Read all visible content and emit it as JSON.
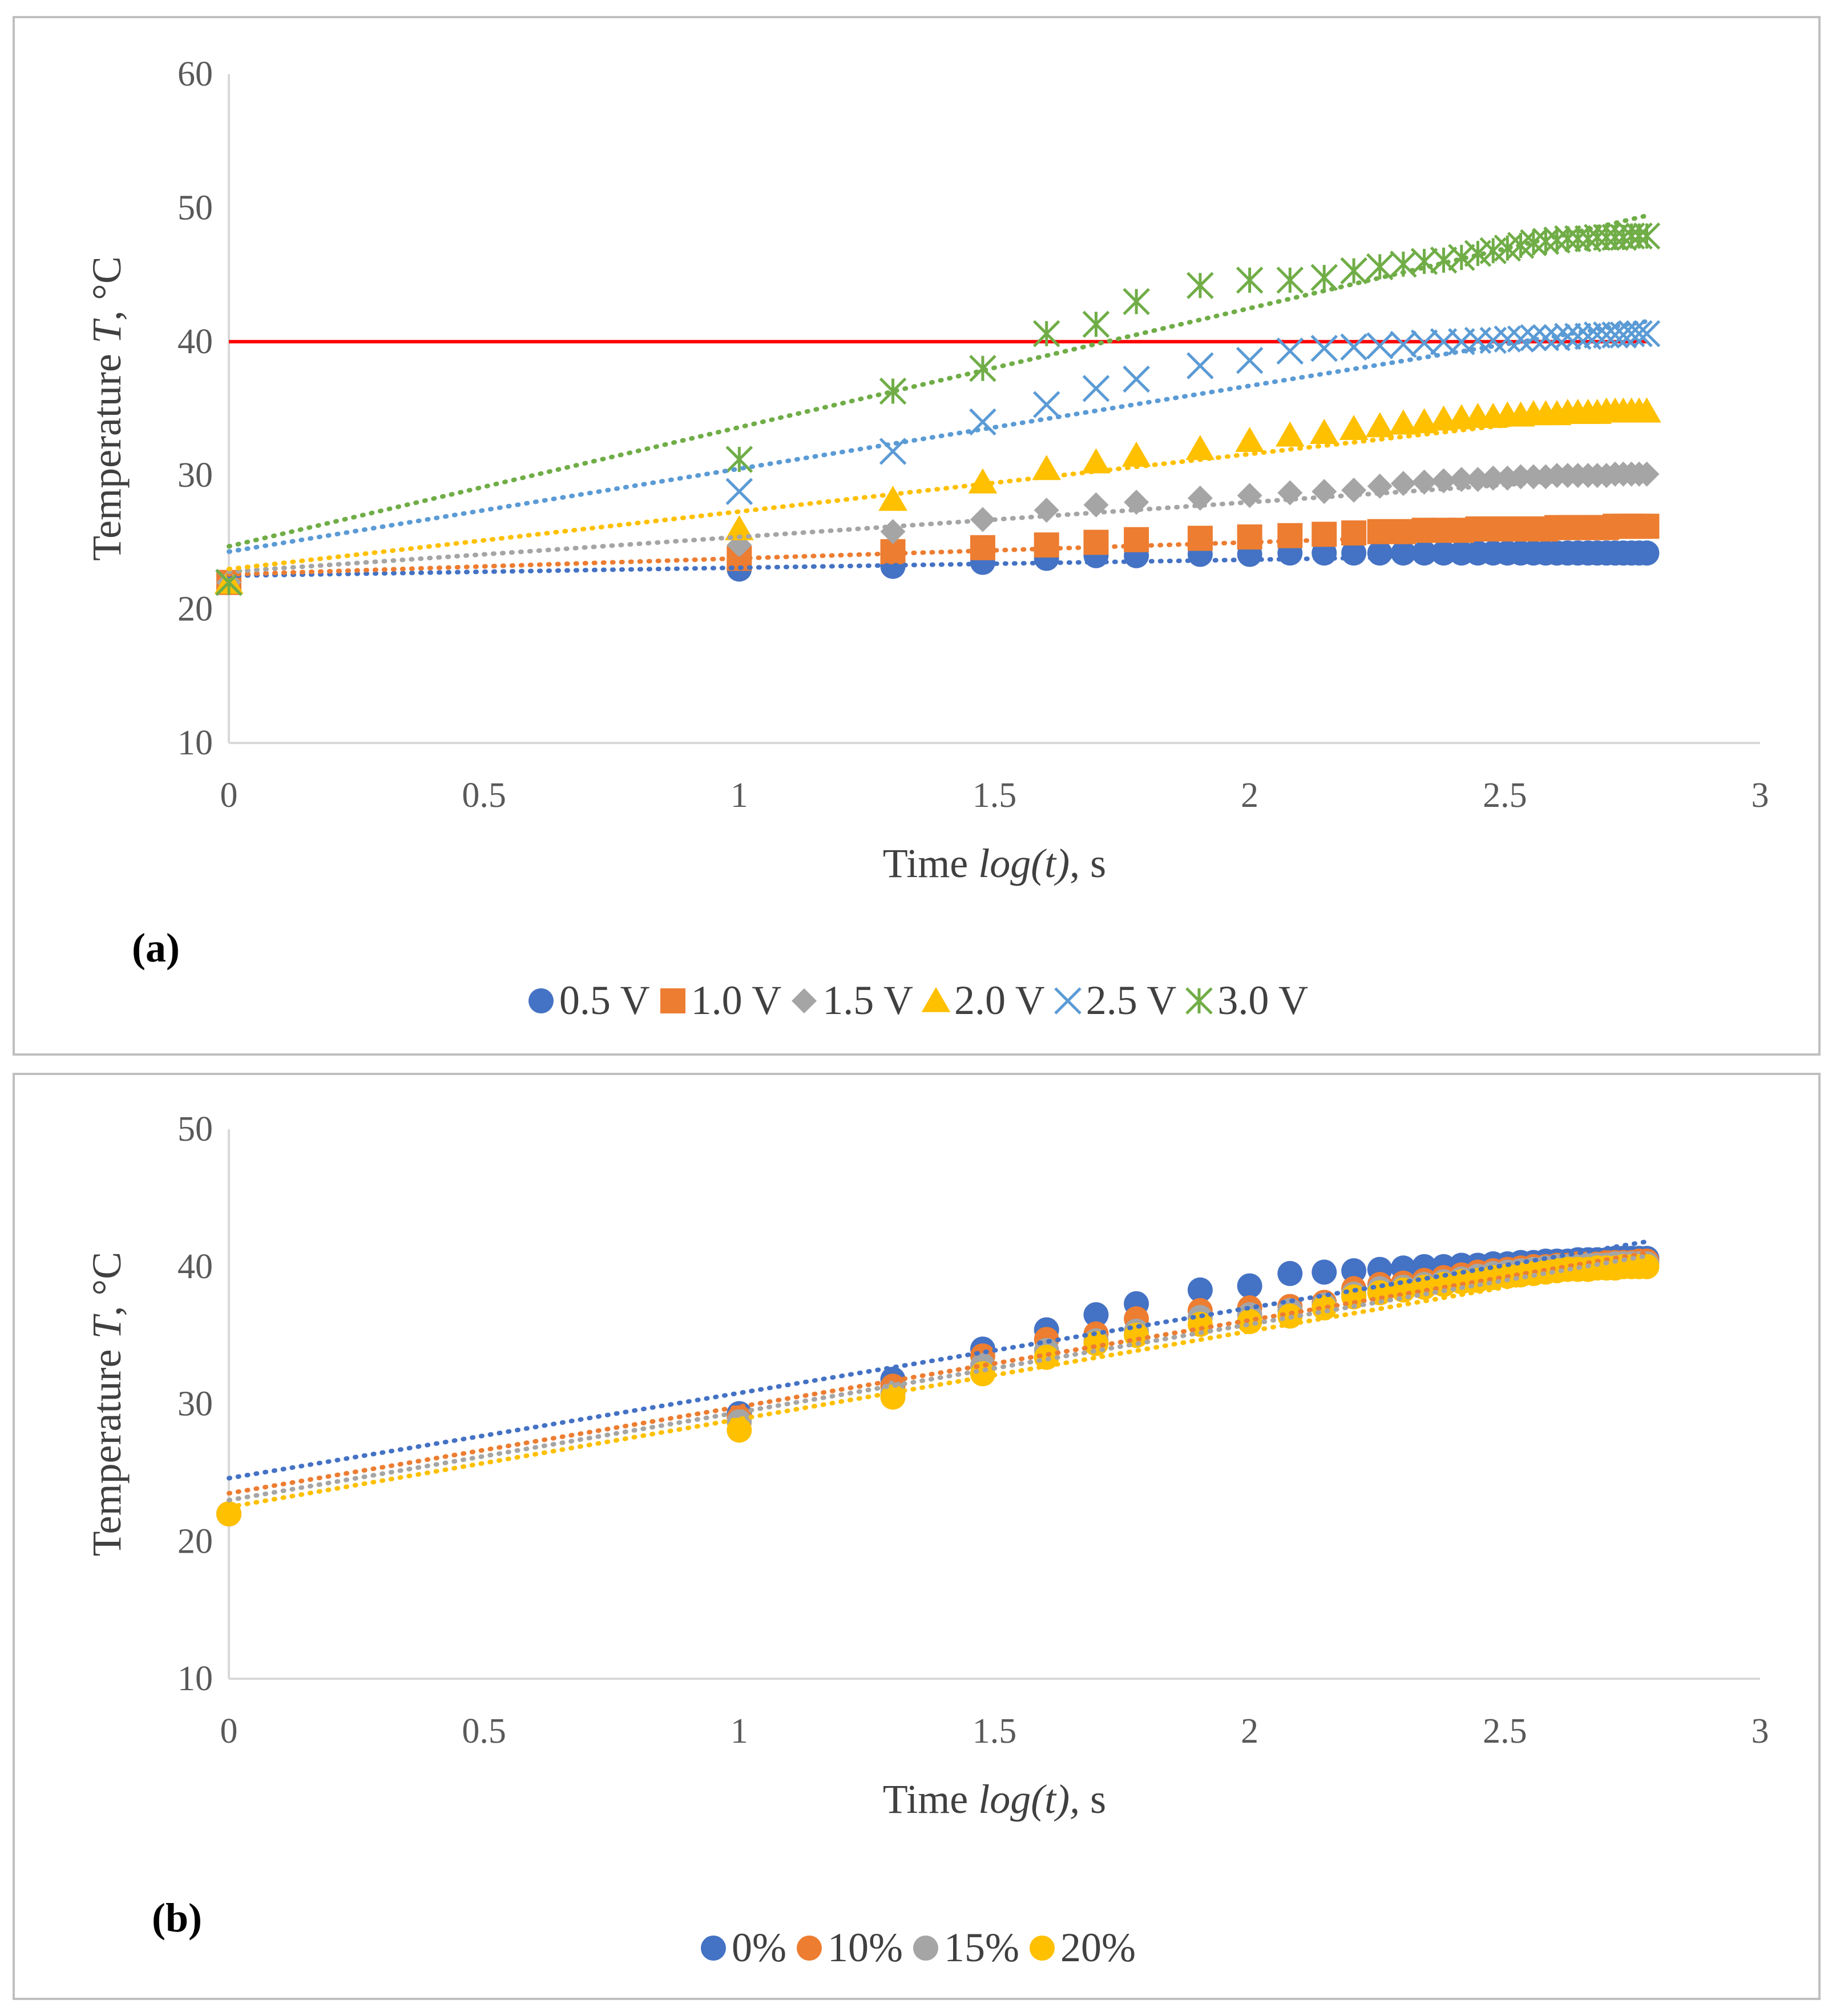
{
  "chart_data": [
    {
      "type": "scatter",
      "panel_label": "(a)",
      "xlabel": "Time log(t), s",
      "xlabel_parts": {
        "prefix": "Time ",
        "italic": "log(t)",
        "suffix": ", s"
      },
      "ylabel": "Temperature T, °C",
      "ylabel_parts": {
        "prefix": "Temperature ",
        "italic": "T",
        "suffix": ", °C"
      },
      "xlim": [
        0,
        3
      ],
      "ylim": [
        10,
        60
      ],
      "x_ticks": [
        "0",
        "0.5",
        "1",
        "1.5",
        "2",
        "2.5",
        "3"
      ],
      "y_ticks": [
        "10",
        "20",
        "30",
        "40",
        "50",
        "60"
      ],
      "grid": false,
      "legend_position": "bottom",
      "threshold_line": {
        "y": 40,
        "color": "#ff0000"
      },
      "x": [
        0,
        1,
        1.301,
        1.477,
        1.602,
        1.699,
        1.778,
        1.903,
        2,
        2.079,
        2.146,
        2.204,
        2.255,
        2.301,
        2.342,
        2.38,
        2.415,
        2.447,
        2.477,
        2.505,
        2.531,
        2.556,
        2.58,
        2.602,
        2.623,
        2.643,
        2.663,
        2.681,
        2.699,
        2.716,
        2.732,
        2.748,
        2.763,
        2.778
      ],
      "series": [
        {
          "name": "0.5 V",
          "marker": "circle",
          "color": "#4472c4",
          "trend": {
            "intercept": 22.5,
            "slope": 0.6
          },
          "values": [
            22,
            23,
            23.2,
            23.5,
            23.8,
            24,
            24,
            24.1,
            24.1,
            24.2,
            24.2,
            24.2,
            24.2,
            24.2,
            24.2,
            24.2,
            24.2,
            24.2,
            24.2,
            24.2,
            24.2,
            24.2,
            24.2,
            24.2,
            24.2,
            24.2,
            24.2,
            24.2,
            24.2,
            24.2,
            24.2,
            24.2,
            24.2,
            24.2
          ]
        },
        {
          "name": "1.0 V",
          "marker": "square",
          "color": "#ed7d31",
          "trend": {
            "intercept": 22.6,
            "slope": 1.2
          },
          "values": [
            22,
            23.8,
            24.3,
            24.6,
            24.8,
            25,
            25.2,
            25.3,
            25.4,
            25.5,
            25.6,
            25.7,
            25.8,
            25.8,
            25.9,
            25.9,
            25.9,
            26,
            26,
            26,
            26,
            26,
            26,
            26.1,
            26.1,
            26.1,
            26.1,
            26.1,
            26.1,
            26.2,
            26.2,
            26.2,
            26.2,
            26.2
          ]
        },
        {
          "name": "1.5 V",
          "marker": "diamond",
          "color": "#a5a5a5",
          "trend": {
            "intercept": 22.8,
            "slope": 2.6
          },
          "values": [
            22,
            24.8,
            25.8,
            26.7,
            27.4,
            27.8,
            28,
            28.3,
            28.5,
            28.7,
            28.8,
            28.9,
            29.2,
            29.4,
            29.5,
            29.6,
            29.7,
            29.7,
            29.8,
            29.8,
            29.9,
            29.9,
            29.9,
            30,
            30,
            30,
            30,
            30,
            30,
            30.1,
            30.1,
            30.1,
            30.1,
            30.1
          ]
        },
        {
          "name": "2.0 V",
          "marker": "triangle",
          "color": "#ffc000",
          "trend": {
            "intercept": 23,
            "slope": 4.3
          },
          "values": [
            22,
            26,
            28.2,
            29.5,
            30.5,
            31,
            31.5,
            32,
            32.6,
            33,
            33.2,
            33.5,
            33.7,
            33.9,
            34,
            34.2,
            34.3,
            34.4,
            34.4,
            34.5,
            34.5,
            34.6,
            34.6,
            34.6,
            34.7,
            34.7,
            34.7,
            34.7,
            34.8,
            34.8,
            34.8,
            34.8,
            34.8,
            34.8
          ]
        },
        {
          "name": "2.5 V",
          "marker": "x",
          "color": "#5b9bd5",
          "trend": {
            "intercept": 24.3,
            "slope": 6.2
          },
          "values": [
            22,
            28.8,
            31.8,
            34,
            35.3,
            36.5,
            37.2,
            38.2,
            38.6,
            39.3,
            39.5,
            39.6,
            39.7,
            39.8,
            39.9,
            40,
            40,
            40.1,
            40.1,
            40.2,
            40.2,
            40.3,
            40.3,
            40.3,
            40.4,
            40.4,
            40.4,
            40.5,
            40.5,
            40.5,
            40.5,
            40.6,
            40.6,
            40.6
          ]
        },
        {
          "name": "3.0 V",
          "marker": "star",
          "color": "#70ad47",
          "trend": {
            "intercept": 24.7,
            "slope": 8.9
          },
          "values": [
            22,
            31.2,
            36.3,
            38,
            40.6,
            41.3,
            43,
            44.2,
            44.6,
            44.6,
            44.8,
            45.3,
            45.6,
            45.8,
            46,
            46.1,
            46.3,
            46.6,
            46.8,
            47,
            47.2,
            47.4,
            47.5,
            47.6,
            47.7,
            47.7,
            47.7,
            47.8,
            47.8,
            47.8,
            47.8,
            47.9,
            47.9,
            47.9
          ]
        }
      ]
    },
    {
      "type": "scatter",
      "panel_label": "(b)",
      "xlabel": "Time log(t), s",
      "xlabel_parts": {
        "prefix": "Time ",
        "italic": "log(t),",
        "suffix": " s"
      },
      "ylabel": "Temperature T, °C",
      "ylabel_parts": {
        "prefix": "Temperature ",
        "italic": "T",
        "suffix": ", °C"
      },
      "xlim": [
        0,
        3
      ],
      "ylim": [
        10,
        50
      ],
      "x_ticks": [
        "0",
        "0.5",
        "1",
        "1.5",
        "2",
        "2.5",
        "3"
      ],
      "y_ticks": [
        "10",
        "20",
        "30",
        "40",
        "50"
      ],
      "grid": false,
      "legend_position": "bottom",
      "x": [
        0,
        1,
        1.301,
        1.477,
        1.602,
        1.699,
        1.778,
        1.903,
        2,
        2.079,
        2.146,
        2.204,
        2.255,
        2.301,
        2.342,
        2.38,
        2.415,
        2.447,
        2.477,
        2.505,
        2.531,
        2.556,
        2.58,
        2.602,
        2.623,
        2.643,
        2.663,
        2.681,
        2.699,
        2.716,
        2.732,
        2.748,
        2.763,
        2.778
      ],
      "series": [
        {
          "name": "0%",
          "marker": "circle",
          "color": "#4472c4",
          "trend": {
            "intercept": 24.6,
            "slope": 6.2
          },
          "values": [
            22,
            29.3,
            31.8,
            34,
            35.4,
            36.5,
            37.3,
            38.3,
            38.6,
            39.5,
            39.6,
            39.7,
            39.8,
            39.9,
            40,
            40,
            40.1,
            40.1,
            40.2,
            40.2,
            40.3,
            40.3,
            40.4,
            40.4,
            40.4,
            40.5,
            40.5,
            40.5,
            40.5,
            40.6,
            40.6,
            40.6,
            40.6,
            40.6
          ]
        },
        {
          "name": "10%",
          "marker": "circle",
          "color": "#ed7d31",
          "trend": {
            "intercept": 23.5,
            "slope": 6.3
          },
          "values": [
            22,
            29,
            31.3,
            33.5,
            34.7,
            35.1,
            36.2,
            36.8,
            37,
            37.1,
            37.4,
            38.4,
            38.7,
            38.8,
            39,
            39.2,
            39.4,
            39.6,
            39.7,
            39.8,
            39.9,
            40,
            40,
            40.1,
            40.1,
            40.2,
            40.2,
            40.2,
            40.3,
            40.3,
            40.3,
            40.3,
            40.4,
            40.4
          ]
        },
        {
          "name": "15%",
          "marker": "circle",
          "color": "#a5a5a5",
          "trend": {
            "intercept": 23,
            "slope": 6.4
          },
          "values": [
            22,
            28.7,
            30.8,
            32.8,
            33.9,
            34.6,
            35.3,
            36.3,
            36.5,
            36.8,
            37.2,
            38,
            38.4,
            38.5,
            38.7,
            38.9,
            39.1,
            39.3,
            39.5,
            39.6,
            39.7,
            39.8,
            39.9,
            40,
            40,
            40,
            40.1,
            40.1,
            40.1,
            40.2,
            40.2,
            40.2,
            40.2,
            40.2
          ]
        },
        {
          "name": "20%",
          "marker": "circle",
          "color": "#ffc000",
          "trend": {
            "intercept": 22.5,
            "slope": 6.4
          },
          "values": [
            22,
            28.1,
            30.5,
            32.2,
            33.4,
            34.4,
            35,
            35.8,
            36,
            36.4,
            37,
            37.8,
            38.1,
            38.3,
            38.5,
            38.7,
            38.9,
            39,
            39.2,
            39.3,
            39.4,
            39.5,
            39.6,
            39.7,
            39.8,
            39.8,
            39.8,
            39.9,
            39.9,
            39.9,
            40,
            40,
            40,
            40
          ]
        }
      ]
    }
  ]
}
